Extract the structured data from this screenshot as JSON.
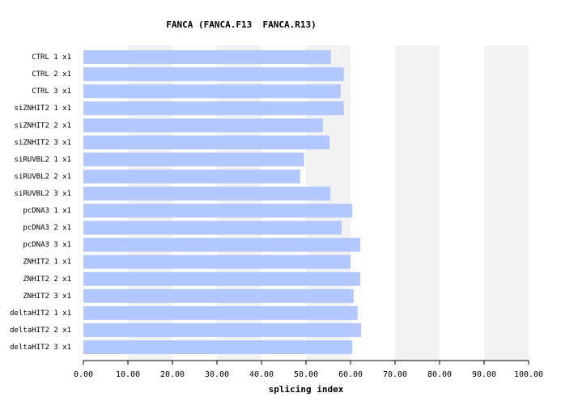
{
  "chart_data": {
    "type": "hbar",
    "title": "FANCA (FANCA.F13  FANCA.R13)",
    "x_label": "splicing index",
    "categories": [
      "CTRL 1 x1",
      "CTRL 2 x1",
      "CTRL 3 x1",
      "siZNHIT2 1 x1",
      "siZNHIT2 2 x1",
      "siZNHIT2 3 x1",
      "siRUVBL2 1 x1",
      "siRUVBL2 2 x1",
      "siRUVBL2 3 x1",
      "pcDNA3 1 x1",
      "pcDNA3 2 x1",
      "pcDNA3 3 x1",
      "ZNHIT2 1 x1",
      "ZNHIT2 2 x1",
      "ZNHIT2 3 x1",
      "deltaHIT2 1 x1",
      "deltaHIT2 2 x1",
      "deltaHIT2 3 x1"
    ],
    "values": [
      55.6,
      58.5,
      57.8,
      58.5,
      53.8,
      55.3,
      49.6,
      48.7,
      55.5,
      60.4,
      58.0,
      62.2,
      60.0,
      62.2,
      60.7,
      61.6,
      62.4,
      60.4
    ],
    "color": "#b3c8ff",
    "band_color": "#f2f2f2",
    "grid": true,
    "xlim": [
      0,
      100
    ],
    "xticks": [
      {
        "value": 0,
        "label": "0.00"
      },
      {
        "value": 10,
        "label": "10.00"
      },
      {
        "value": 20,
        "label": "20.00"
      },
      {
        "value": 30,
        "label": "30.00"
      },
      {
        "value": 40,
        "label": "40.00"
      },
      {
        "value": 50,
        "label": "50.00"
      },
      {
        "value": 60,
        "label": "60.00"
      },
      {
        "value": 70,
        "label": "70.00"
      },
      {
        "value": 80,
        "label": "80.00"
      },
      {
        "value": 90,
        "label": "90.00"
      },
      {
        "value": 100,
        "label": "100.00"
      }
    ]
  }
}
